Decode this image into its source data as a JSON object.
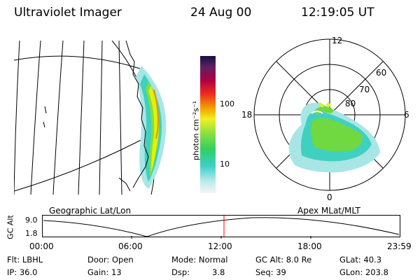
{
  "header": {
    "instrument": "Ultraviolet Imager",
    "date": "24 Aug 00",
    "time": "12:19:05 UT"
  },
  "colorbar": {
    "unit_label": "photon cm⁻²s⁻¹",
    "tick_100": "100",
    "tick_10": "10"
  },
  "polar_plot": {
    "mlt_labels": {
      "noon": "12",
      "dusk": "18",
      "dawn": "6",
      "midnight": "0"
    },
    "lat_labels": [
      "60",
      "70",
      "80"
    ]
  },
  "timeline": {
    "left_title": "Geographic Lat/Lon",
    "right_title": "Apex MLat/MLT",
    "ylabel": "GC Alt",
    "y_max": "9.0",
    "y_min": "1.8",
    "x_ticks": [
      "00:00",
      "06:00",
      "12:00",
      "18:00",
      "23:59"
    ],
    "marker_color": "#ff0000"
  },
  "info": {
    "row1": [
      "Flt: LBHL",
      "Door: Open",
      "Mode: Normal",
      "GC Alt: 8.0 Re",
      "GLat:  40.3"
    ],
    "row2": [
      "IP: 36.0",
      "Gain: 13",
      "Dsp:",
      "3.8",
      "Seq: 39",
      "GLon: 203.8"
    ]
  }
}
